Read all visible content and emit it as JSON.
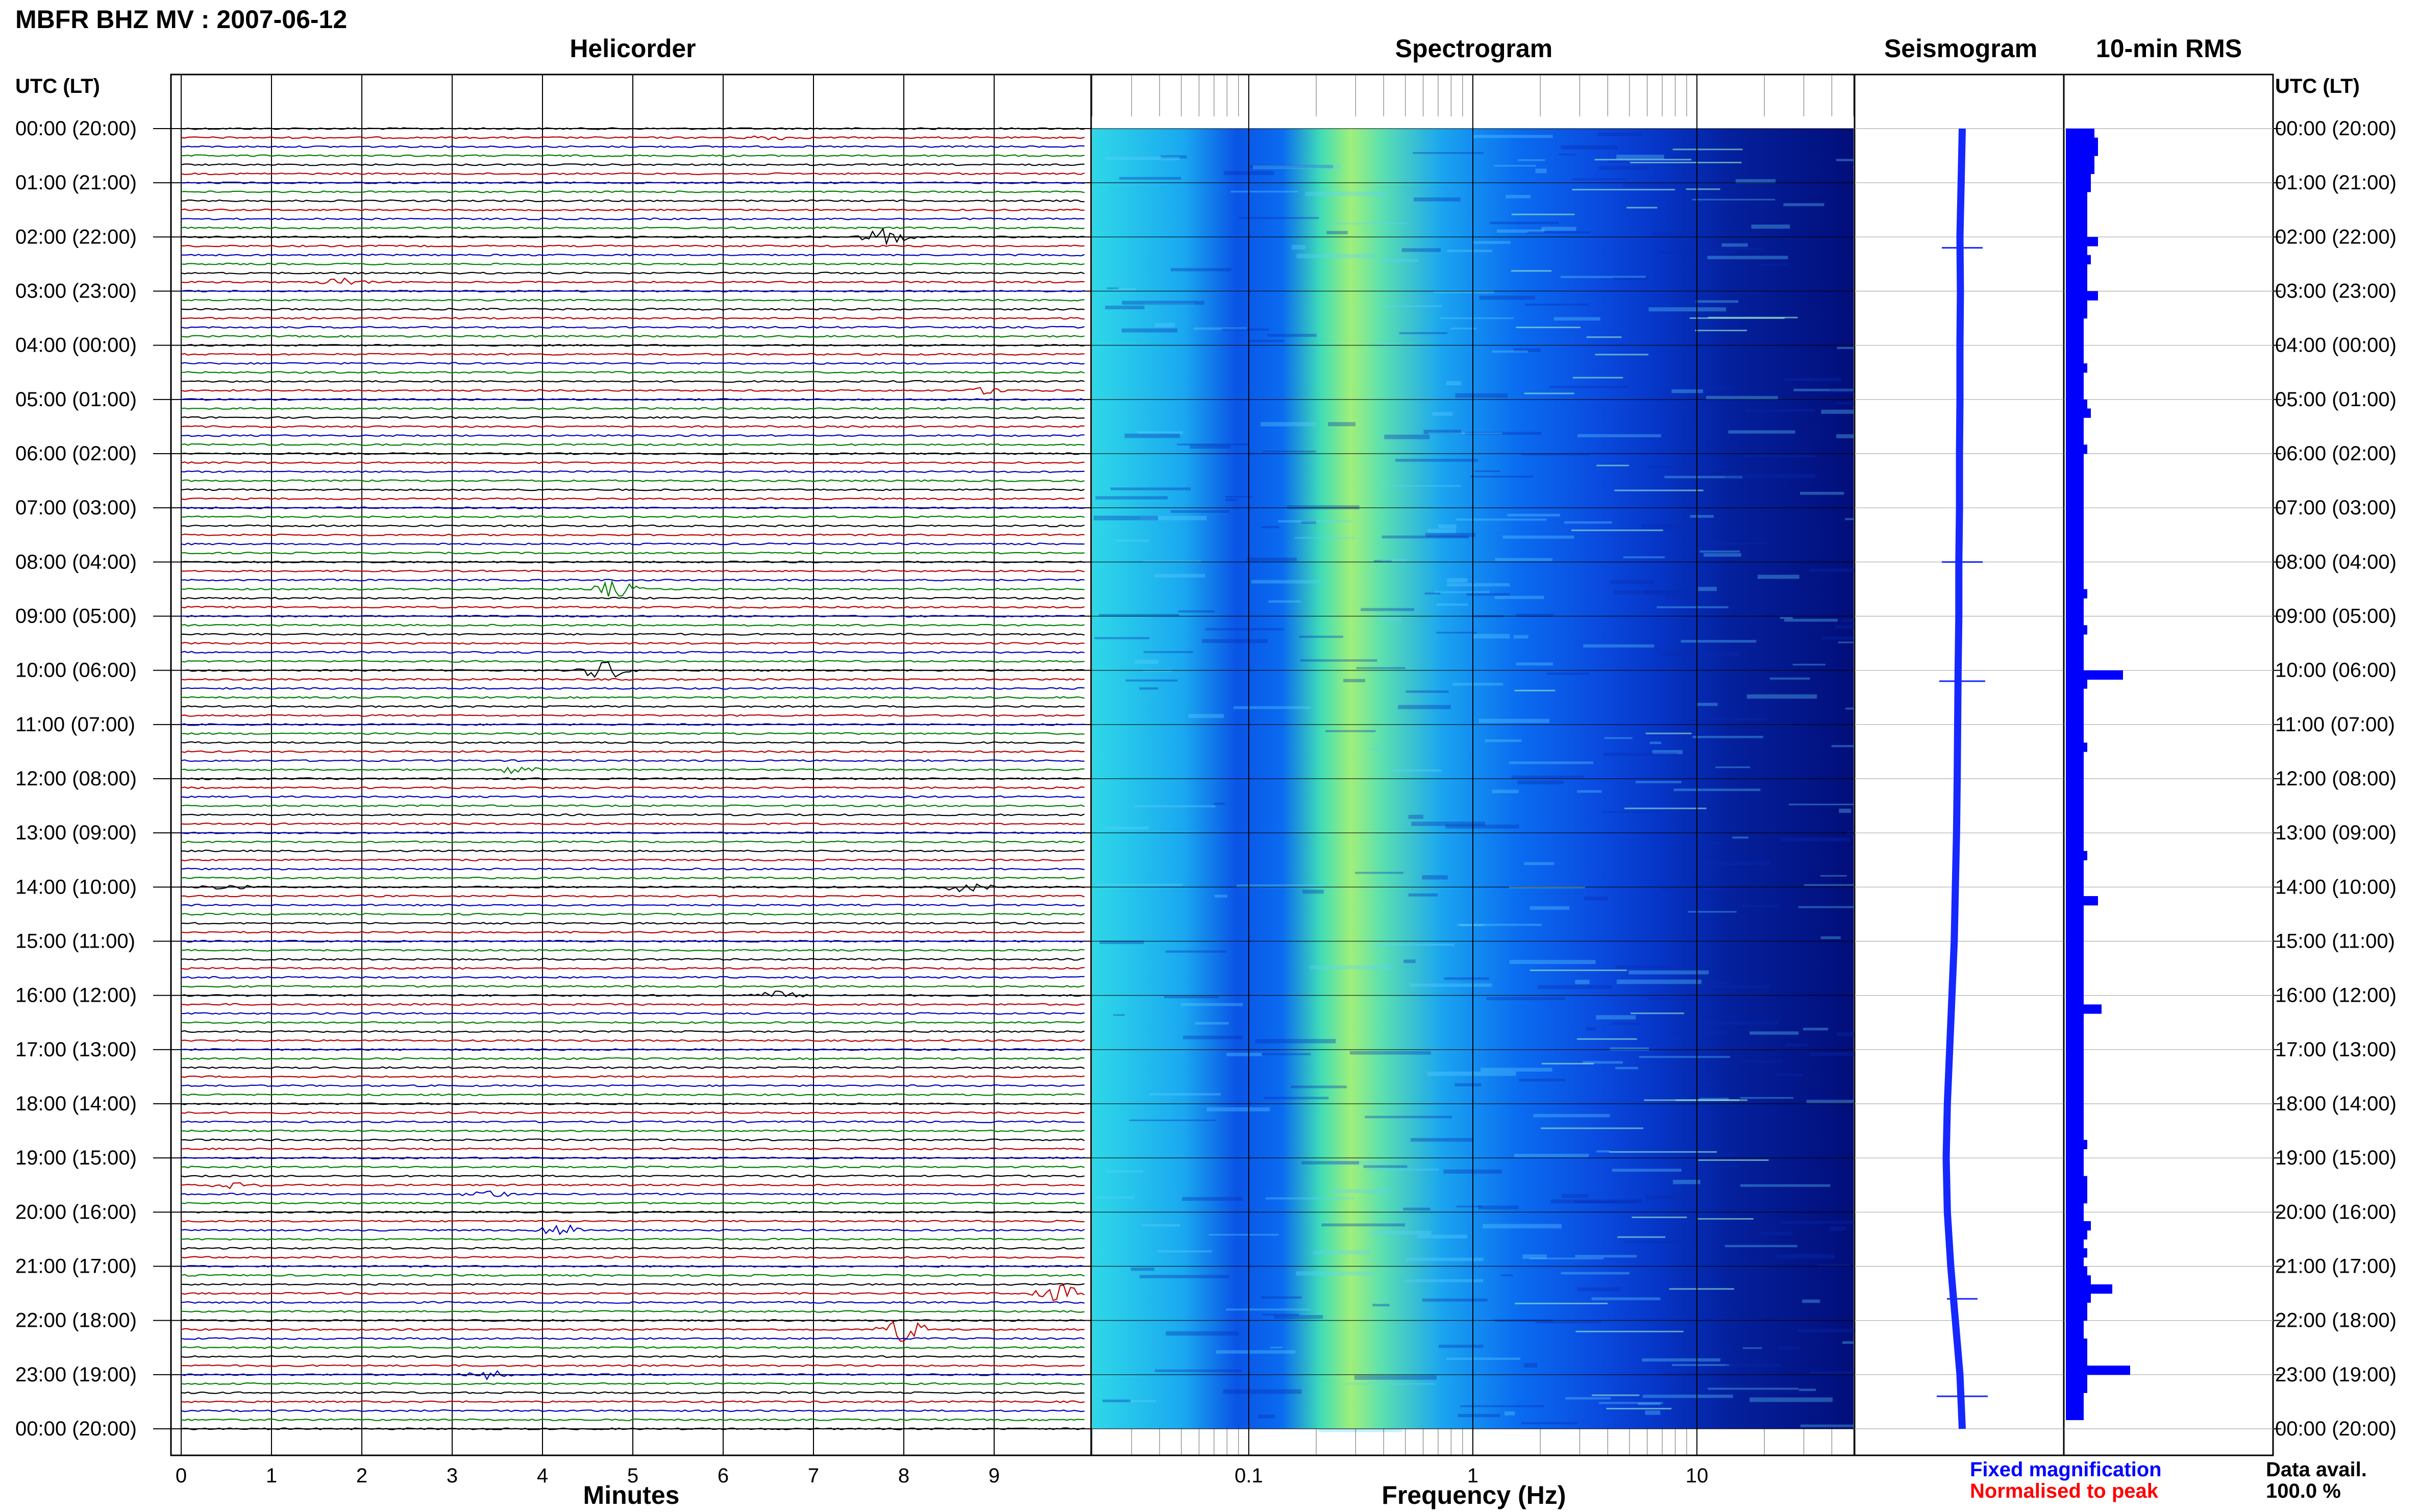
{
  "title": "MBFR BHZ MV : 2007-06-12",
  "panels": {
    "helicorder": "Helicorder",
    "spectrogram": "Spectrogram",
    "seismogram": "Seismogram",
    "rms": "10-min RMS"
  },
  "axis_labels": {
    "left_time": "UTC (LT)",
    "right_time": "UTC (LT)",
    "minutes": "Minutes",
    "frequency": "Frequency (Hz)"
  },
  "legend": {
    "fixed": "Fixed magnification",
    "normalised": "Normalised to peak",
    "fixed_color": "#0000ff",
    "normalised_color": "#ff0000"
  },
  "data_avail": {
    "label": "Data avail.",
    "value": "100.0 %"
  },
  "colors": {
    "trace_cycle": [
      "#000000",
      "#c00000",
      "#0000c0",
      "#008000"
    ],
    "rms_bar": "#0000ff",
    "spectrogram_cmap": [
      "#7fffd4",
      "#00c8ff",
      "#0064ff",
      "#0000c8",
      "#00008b"
    ]
  },
  "chart_data": [
    {
      "type": "helicorder",
      "title": "Helicorder",
      "xlabel": "Minutes",
      "x_ticks": [
        "0",
        "1",
        "2",
        "3",
        "4",
        "5",
        "6",
        "7",
        "8",
        "9"
      ],
      "xlim": [
        0,
        10
      ],
      "rows_per_hour": 6,
      "time_labels": [
        "00:00 (20:00)",
        "01:00 (21:00)",
        "02:00 (22:00)",
        "03:00 (23:00)",
        "04:00 (00:00)",
        "05:00 (01:00)",
        "06:00 (02:00)",
        "07:00 (03:00)",
        "08:00 (04:00)",
        "09:00 (05:00)",
        "10:00 (06:00)",
        "11:00 (07:00)",
        "12:00 (08:00)",
        "13:00 (09:00)",
        "14:00 (10:00)",
        "15:00 (11:00)",
        "16:00 (12:00)",
        "17:00 (13:00)",
        "18:00 (14:00)",
        "19:00 (15:00)",
        "20:00 (16:00)",
        "21:00 (17:00)",
        "22:00 (18:00)",
        "23:00 (19:00)",
        "00:00 (20:00)"
      ],
      "events": [
        {
          "row": 1,
          "minute": 6.5,
          "amp": 0.3
        },
        {
          "row": 12,
          "minute": 7.8,
          "amp": 1.2
        },
        {
          "row": 17,
          "minute": 1.8,
          "amp": 0.5
        },
        {
          "row": 29,
          "minute": 9.0,
          "amp": 0.5
        },
        {
          "row": 51,
          "minute": 4.8,
          "amp": 1.0
        },
        {
          "row": 60,
          "minute": 4.7,
          "amp": 1.3
        },
        {
          "row": 71,
          "minute": 3.7,
          "amp": 0.5
        },
        {
          "row": 84,
          "minute": 0.5,
          "amp": 0.3
        },
        {
          "row": 84,
          "minute": 8.7,
          "amp": 0.6
        },
        {
          "row": 96,
          "minute": 6.6,
          "amp": 0.5
        },
        {
          "row": 117,
          "minute": 0.6,
          "amp": 0.5
        },
        {
          "row": 118,
          "minute": 3.4,
          "amp": 0.5
        },
        {
          "row": 122,
          "minute": 4.2,
          "amp": 0.8
        },
        {
          "row": 129,
          "minute": 9.7,
          "amp": 1.2
        },
        {
          "row": 133,
          "minute": 8.0,
          "amp": 1.5
        },
        {
          "row": 138,
          "minute": 3.4,
          "amp": 0.5
        }
      ]
    },
    {
      "type": "heatmap",
      "title": "Spectrogram",
      "xlabel": "Frequency (Hz)",
      "x_scale": "log",
      "xlim": [
        0.02,
        50
      ],
      "x_ticks": [
        "0.1",
        "1",
        "10"
      ],
      "peak_band_hz": [
        0.2,
        0.6
      ]
    },
    {
      "type": "line",
      "title": "Seismogram",
      "description_values": "long-period drift per hour",
      "hours": [
        0,
        1,
        2,
        3,
        4,
        5,
        6,
        7,
        8,
        9,
        10,
        11,
        12,
        13,
        14,
        15,
        16,
        17,
        18,
        19,
        20,
        21,
        22,
        23,
        24
      ],
      "offsets": [
        0.0,
        -0.05,
        -0.1,
        -0.08,
        -0.1,
        -0.1,
        -0.12,
        -0.12,
        -0.15,
        -0.15,
        -0.18,
        -0.2,
        -0.22,
        -0.25,
        -0.3,
        -0.35,
        -0.45,
        -0.55,
        -0.65,
        -0.7,
        -0.65,
        -0.5,
        -0.3,
        -0.1,
        0.0
      ]
    },
    {
      "type": "bar",
      "title": "10-min RMS",
      "orientation": "horizontal",
      "values": [
        0.8,
        0.9,
        0.9,
        0.8,
        0.8,
        0.7,
        0.7,
        0.6,
        0.6,
        0.6,
        0.6,
        0.6,
        0.9,
        0.6,
        0.7,
        0.6,
        0.6,
        0.6,
        0.9,
        0.6,
        0.6,
        0.5,
        0.5,
        0.5,
        0.5,
        0.5,
        0.6,
        0.5,
        0.5,
        0.5,
        0.6,
        0.7,
        0.5,
        0.5,
        0.5,
        0.6,
        0.5,
        0.5,
        0.5,
        0.5,
        0.5,
        0.5,
        0.5,
        0.5,
        0.5,
        0.5,
        0.5,
        0.5,
        0.5,
        0.5,
        0.5,
        0.6,
        0.5,
        0.5,
        0.5,
        0.6,
        0.5,
        0.5,
        0.5,
        0.5,
        1.6,
        0.6,
        0.5,
        0.5,
        0.5,
        0.5,
        0.5,
        0.5,
        0.6,
        0.5,
        0.5,
        0.5,
        0.5,
        0.5,
        0.5,
        0.5,
        0.5,
        0.5,
        0.5,
        0.5,
        0.6,
        0.5,
        0.5,
        0.5,
        0.5,
        0.9,
        0.5,
        0.5,
        0.5,
        0.5,
        0.5,
        0.5,
        0.5,
        0.5,
        0.5,
        0.5,
        0.5,
        1.0,
        0.5,
        0.5,
        0.5,
        0.5,
        0.5,
        0.5,
        0.5,
        0.5,
        0.5,
        0.5,
        0.5,
        0.5,
        0.5,
        0.5,
        0.6,
        0.5,
        0.5,
        0.5,
        0.6,
        0.6,
        0.6,
        0.5,
        0.5,
        0.7,
        0.6,
        0.5,
        0.6,
        0.5,
        0.6,
        0.7,
        1.3,
        0.7,
        0.6,
        0.6,
        0.5,
        0.5,
        0.6,
        0.6,
        0.6,
        1.8,
        0.6,
        0.6,
        0.5,
        0.5,
        0.5
      ]
    }
  ]
}
